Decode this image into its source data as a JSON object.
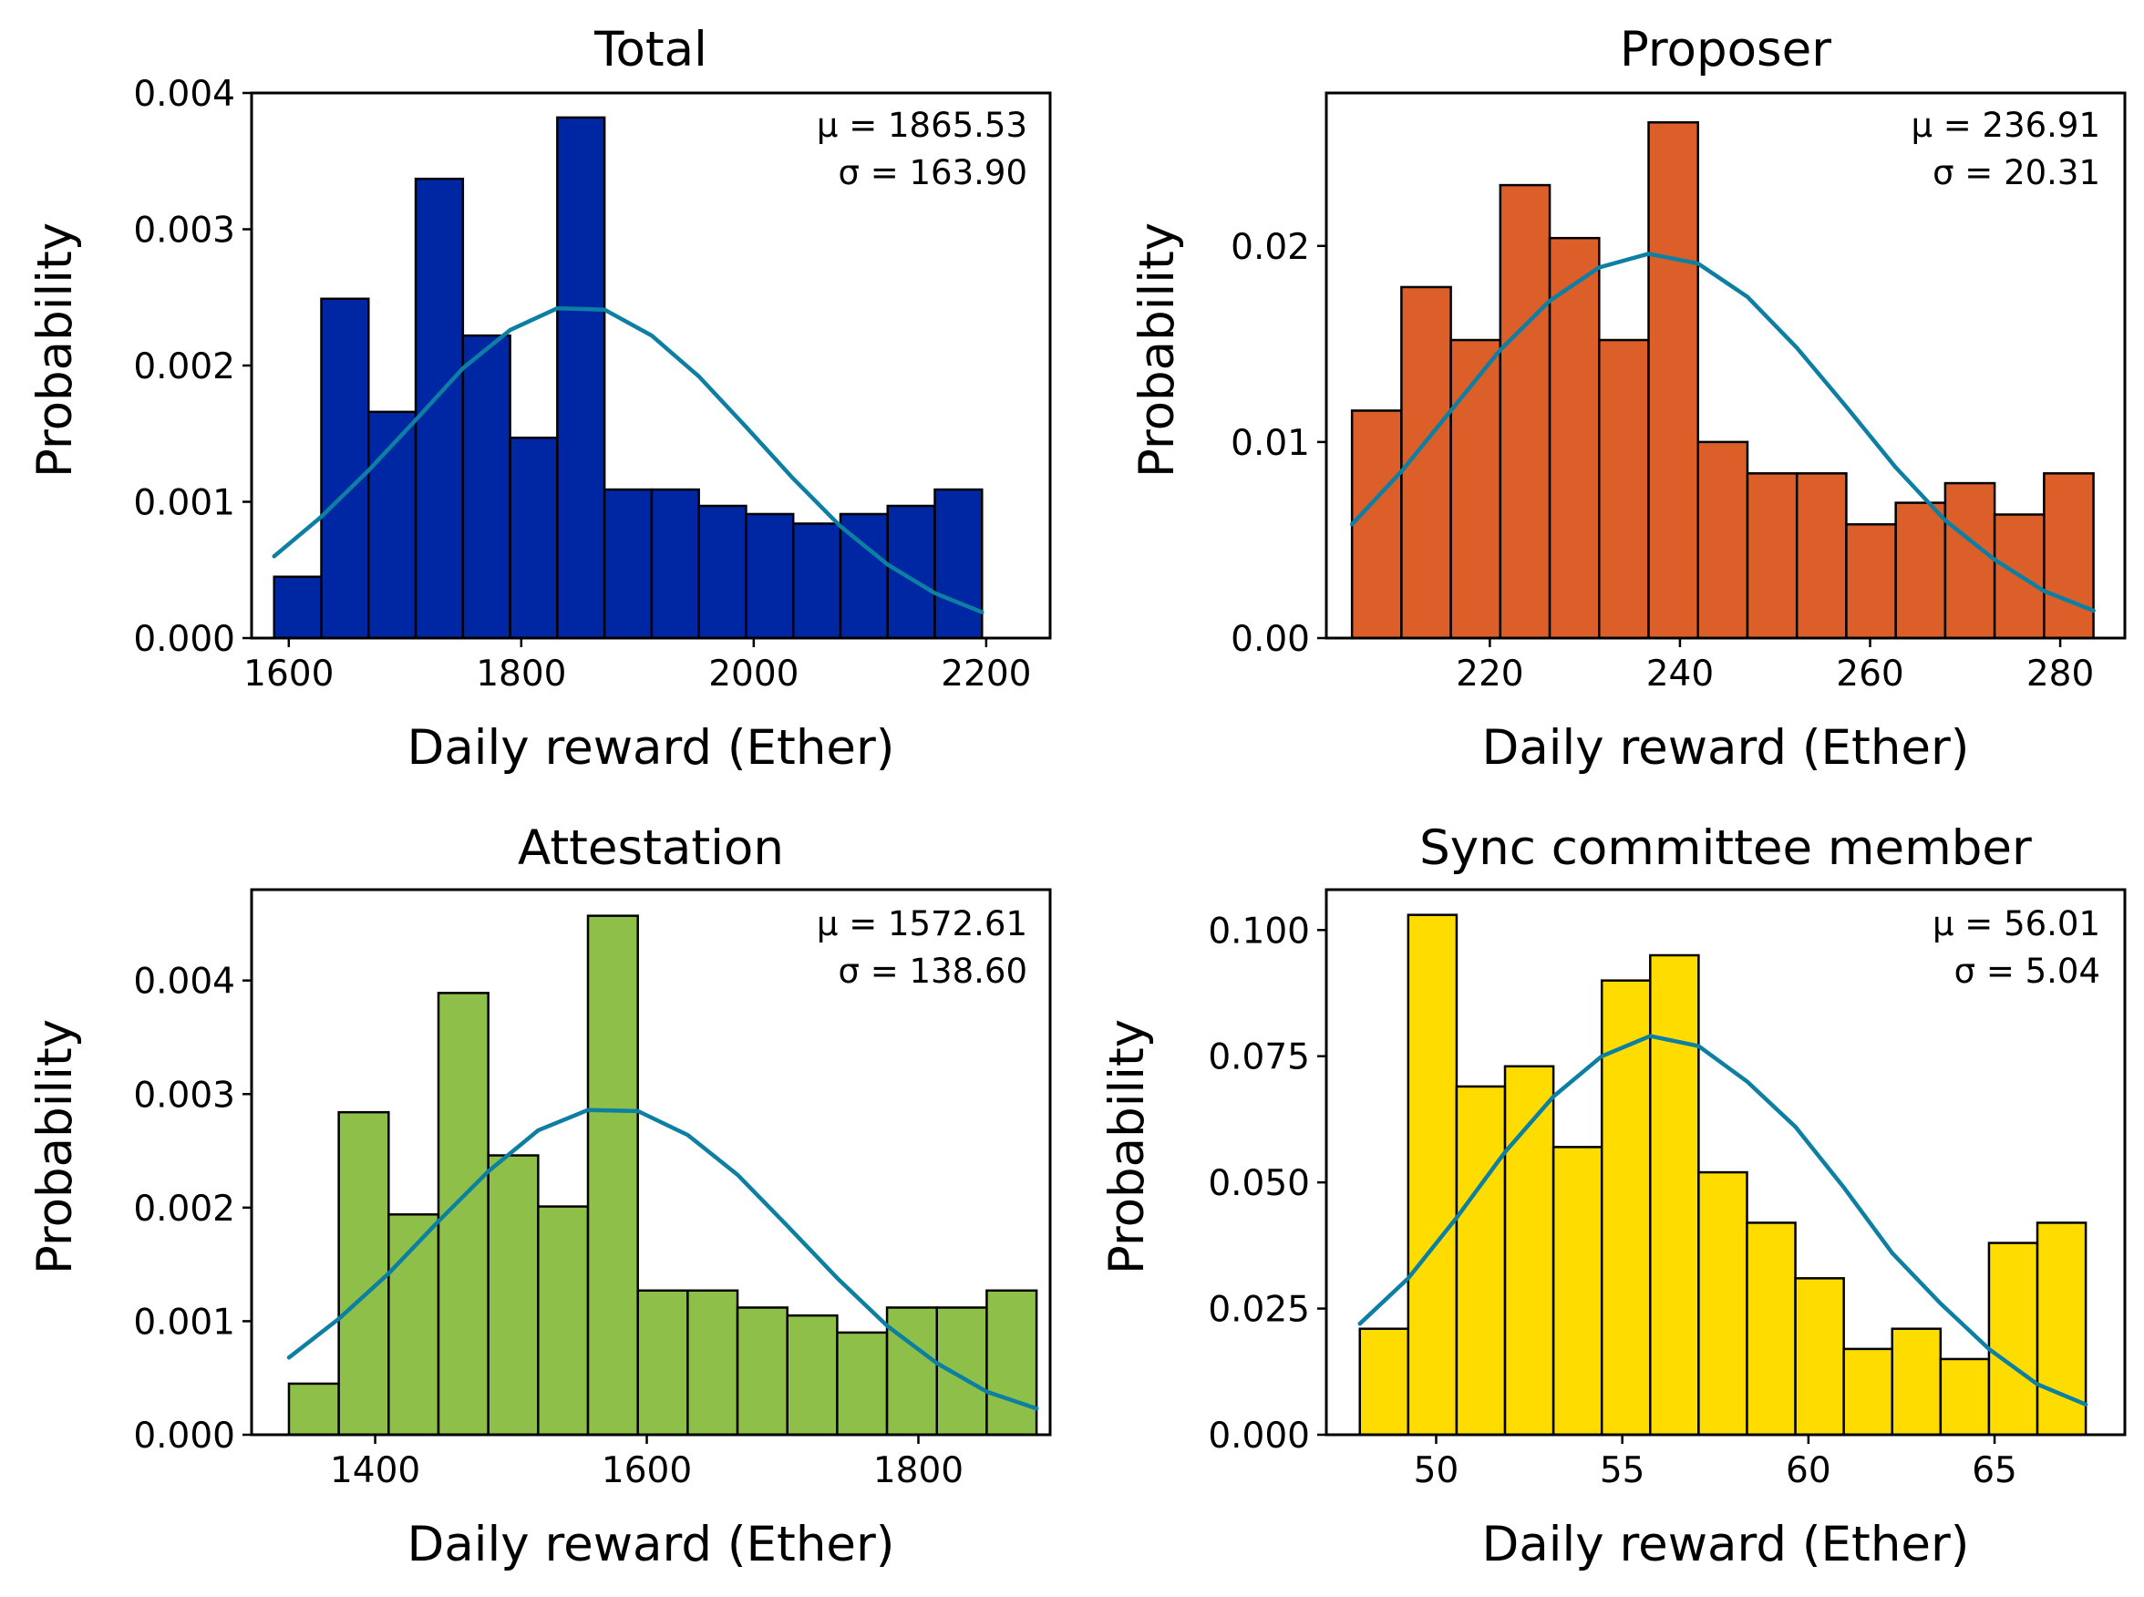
{
  "chart_data": [
    {
      "type": "bar",
      "title": "Total",
      "xlabel": "Daily reward (Ether)",
      "ylabel": "Probability",
      "color": "#0027a3",
      "fit_color": "#0c7fa3",
      "xlim": [
        1568,
        2255
      ],
      "ylim": [
        0,
        0.004
      ],
      "xticks": [
        1600,
        1800,
        2000,
        2200
      ],
      "xtick_labels": [
        "1600",
        "1800",
        "2000",
        "2200"
      ],
      "yticks": [
        0,
        0.001,
        0.002,
        0.003,
        0.004
      ],
      "ytick_labels": [
        "0.000",
        "0.001",
        "0.002",
        "0.003",
        "0.004"
      ],
      "bin_edges": [
        1587.4,
        1628.0,
        1668.6,
        1709.2,
        1749.8,
        1790.4,
        1831.0,
        1871.6,
        1912.2,
        1952.8,
        1993.4,
        2034.0,
        2074.6,
        2115.2,
        2155.8,
        2196.4,
        2237.0
      ],
      "values": [
        0.00045,
        0.00249,
        0.00166,
        0.00337,
        0.00222,
        0.00147,
        0.00382,
        0.00109,
        0.00109,
        0.00097,
        0.00091,
        0.00084,
        0.00091,
        0.00097,
        0.00109,
        0
      ],
      "fit_x": [
        1587.4,
        1628.0,
        1668.6,
        1709.2,
        1749.8,
        1790.4,
        1831.0,
        1871.6,
        1912.2,
        1952.8,
        1993.4,
        2034.0,
        2074.6,
        2115.2,
        2155.8,
        2196.4,
        2237.0
      ],
      "fit_y": [
        0.0006,
        0.00089,
        0.00123,
        0.0016,
        0.00198,
        0.00226,
        0.00242,
        0.00241,
        0.00222,
        0.00192,
        0.00155,
        0.00117,
        0.00082,
        0.00054,
        0.00033,
        0.00019
      ],
      "annotations": [
        "μ = 1865.53",
        "σ = 163.90"
      ]
    },
    {
      "type": "bar",
      "title": "Proposer",
      "xlabel": "Daily reward (Ether)",
      "ylabel": "Probability",
      "color": "#dc5f29",
      "fit_color": "#0c7fa3",
      "xlim": [
        202.8,
        286.8
      ],
      "ylim": [
        0,
        0.0278
      ],
      "xticks": [
        220,
        240,
        260,
        280
      ],
      "xtick_labels": [
        "220",
        "240",
        "260",
        "280"
      ],
      "yticks": [
        0,
        0.01,
        0.02
      ],
      "ytick_labels": [
        "0.00",
        "0.01",
        "0.02"
      ],
      "bin_edges": [
        205.5,
        210.7,
        215.9,
        221.1,
        226.3,
        231.5,
        236.7,
        241.9,
        247.1,
        252.3,
        257.5,
        262.7,
        267.9,
        273.1,
        278.3,
        283.5
      ],
      "values": [
        0.0116,
        0.0179,
        0.0152,
        0.0231,
        0.0204,
        0.0152,
        0.0263,
        0.01,
        0.0084,
        0.0084,
        0.0058,
        0.0069,
        0.0079,
        0.0063,
        0.0084
      ],
      "fit_x": [
        205.5,
        210.7,
        215.9,
        221.1,
        226.3,
        231.5,
        236.7,
        241.9,
        247.1,
        252.3,
        257.5,
        262.7,
        267.9,
        273.1,
        278.3,
        283.5
      ],
      "fit_y": [
        0.0058,
        0.0085,
        0.0116,
        0.0147,
        0.0172,
        0.0189,
        0.0196,
        0.0191,
        0.0174,
        0.0148,
        0.0118,
        0.0087,
        0.006,
        0.004,
        0.0024,
        0.0014
      ],
      "annotations": [
        "μ = 236.91",
        "σ = 20.31"
      ]
    },
    {
      "type": "bar",
      "title": "Attestation",
      "xlabel": "Daily reward (Ether)",
      "ylabel": "Probability",
      "color": "#8ec049",
      "fit_color": "#0c7fa3",
      "xlim": [
        1309,
        1897
      ],
      "ylim": [
        0,
        0.0048
      ],
      "xticks": [
        1400,
        1600,
        1800
      ],
      "xtick_labels": [
        "1400",
        "1600",
        "1800"
      ],
      "yticks": [
        0,
        0.001,
        0.002,
        0.003,
        0.004
      ],
      "ytick_labels": [
        "0.000",
        "0.001",
        "0.002",
        "0.003",
        "0.004"
      ],
      "bin_edges": [
        1336.5,
        1373.2,
        1409.9,
        1446.6,
        1483.3,
        1520.0,
        1556.7,
        1593.4,
        1630.1,
        1666.8,
        1703.5,
        1740.2,
        1776.9,
        1813.6,
        1850.3,
        1887.0
      ],
      "values": [
        0.00045,
        0.00284,
        0.00194,
        0.00389,
        0.00246,
        0.00201,
        0.00457,
        0.00127,
        0.00127,
        0.00112,
        0.00105,
        0.0009,
        0.00112,
        0.00112,
        0.00127
      ],
      "fit_x": [
        1336.5,
        1373.2,
        1409.9,
        1446.6,
        1483.3,
        1520.0,
        1556.7,
        1593.4,
        1630.1,
        1666.8,
        1703.5,
        1740.2,
        1776.9,
        1813.6,
        1850.3,
        1887.0
      ],
      "fit_y": [
        0.00068,
        0.00102,
        0.00142,
        0.00188,
        0.00232,
        0.00268,
        0.00286,
        0.00285,
        0.00264,
        0.00229,
        0.00184,
        0.00138,
        0.00096,
        0.00063,
        0.00038,
        0.00023
      ],
      "annotations": [
        "μ = 1572.61",
        "σ = 138.60"
      ]
    },
    {
      "type": "bar",
      "title": "Sync committee member",
      "xlabel": "Daily reward (Ether)",
      "ylabel": "Probability",
      "color": "#ffdc00",
      "fit_color": "#0c7fa3",
      "xlim": [
        47.05,
        68.5
      ],
      "ylim": [
        0,
        0.108
      ],
      "xticks": [
        50,
        55,
        60,
        65
      ],
      "xtick_labels": [
        "50",
        "55",
        "60",
        "65"
      ],
      "yticks": [
        0,
        0.025,
        0.05,
        0.075,
        0.1
      ],
      "ytick_labels": [
        "0.000",
        "0.025",
        "0.050",
        "0.075",
        "0.100"
      ],
      "bin_edges": [
        47.95,
        49.25,
        50.55,
        51.85,
        53.15,
        54.45,
        55.75,
        57.05,
        58.35,
        59.65,
        60.95,
        62.25,
        63.55,
        64.85,
        66.15,
        67.45
      ],
      "values": [
        0.021,
        0.103,
        0.069,
        0.073,
        0.057,
        0.09,
        0.095,
        0.052,
        0.042,
        0.031,
        0.017,
        0.021,
        0.015,
        0.038,
        0.042
      ],
      "fit_x": [
        47.95,
        49.25,
        50.55,
        51.85,
        53.15,
        54.45,
        55.75,
        57.05,
        58.35,
        59.65,
        60.95,
        62.25,
        63.55,
        64.85,
        66.15,
        67.45
      ],
      "fit_y": [
        0.022,
        0.031,
        0.043,
        0.056,
        0.067,
        0.075,
        0.079,
        0.077,
        0.07,
        0.061,
        0.049,
        0.036,
        0.026,
        0.017,
        0.01,
        0.006
      ],
      "annotations": [
        "μ = 56.01",
        "σ = 5.04"
      ]
    }
  ]
}
